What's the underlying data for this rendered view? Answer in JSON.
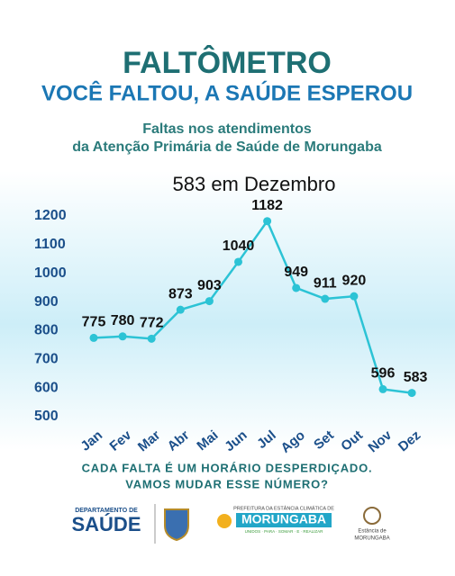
{
  "header": {
    "title": "FALTÔMETRO",
    "subtitle": "VOCÊ FALTOU, A SAÚDE ESPEROU",
    "description_line1": "Faltas nos atendimentos",
    "description_line2": "da Atenção Primária de Saúde de Morungaba"
  },
  "chart_data": {
    "type": "line",
    "title": "583 em Dezembro",
    "categories": [
      "Jan",
      "Fev",
      "Mar",
      "Abr",
      "Mai",
      "Jun",
      "Jul",
      "Ago",
      "Set",
      "Out",
      "Nov",
      "Dez"
    ],
    "series": [
      {
        "color": "#2cc3d5",
        "values": [
          775,
          780,
          772,
          873,
          903,
          1040,
          1182,
          949,
          911,
          920,
          596,
          583
        ]
      }
    ],
    "ylim": [
      480,
      1230
    ],
    "yticks": [
      500,
      600,
      700,
      800,
      900,
      1000,
      1100,
      1200
    ]
  },
  "footer": {
    "line1": "CADA FALTA É UM HORÁRIO DESPERDIÇADO.",
    "line2": "VAMOS MUDAR ESSE NÚMERO?"
  },
  "logos": {
    "dept_top": "DEPARTAMENTO DE",
    "dept_name": "SAÚDE",
    "pref_top": "PREFEITURA DA ESTÂNCIA CLIMÁTICA DE",
    "pref_name": "MORUNGABA",
    "pref_slogan": "UNIDOS · PARA · SOMAR · E · REALIZAR",
    "est_top": "Estância de",
    "est_name": "MORUNGABA"
  }
}
